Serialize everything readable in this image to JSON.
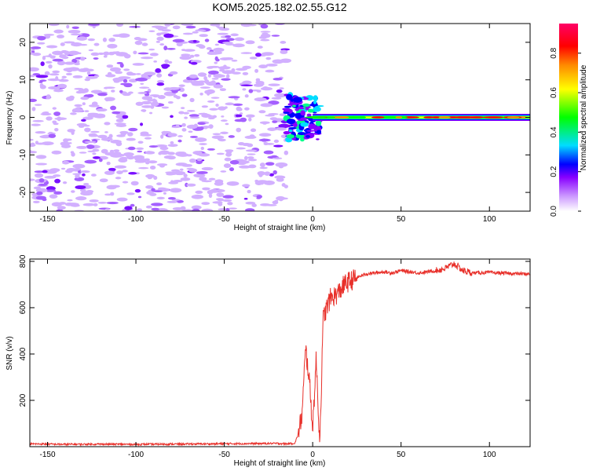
{
  "title": "KOM5.2025.182.02.55.G12",
  "chart_data": [
    {
      "type": "heatmap",
      "xlabel": "Height of straight line (km)",
      "ylabel": "Frequency (Hz)",
      "xlim": [
        -160,
        123
      ],
      "ylim": [
        -25,
        25
      ],
      "xticks": [
        -150,
        -100,
        -50,
        0,
        50,
        100
      ],
      "yticks": [
        -20,
        -10,
        0,
        10,
        20
      ],
      "grid": false,
      "colorbar": {
        "label": "Normalized spectral amplitude",
        "range": [
          0,
          0.95
        ],
        "ticks": [
          0.0,
          0.2,
          0.4,
          0.6,
          0.8
        ],
        "colors": [
          "#ffffff",
          "#cc99ff",
          "#8800ff",
          "#0000ff",
          "#00ddff",
          "#00ff00",
          "#ffff00",
          "#ff8800",
          "#ff0000",
          "#ff0066"
        ]
      },
      "features": {
        "noise_region_x": [
          -160,
          -15
        ],
        "transition_x": [
          -15,
          0
        ],
        "carrier_region_x": [
          0,
          123
        ],
        "carrier_frequency_hz": 0
      }
    },
    {
      "type": "line",
      "xlabel": "Height of straight line (km)",
      "ylabel": "SNR (v/v)",
      "xlim": [
        -160,
        123
      ],
      "ylim": [
        0,
        810
      ],
      "xticks": [
        -150,
        -100,
        -50,
        0,
        50,
        100
      ],
      "yticks": [
        200,
        400,
        600,
        800
      ],
      "grid": false,
      "line_color": "#e8302a",
      "x": [
        -160,
        -140,
        -120,
        -100,
        -80,
        -60,
        -40,
        -20,
        -15,
        -10,
        -8,
        -6,
        -4,
        -2,
        0,
        2,
        4,
        6,
        8,
        10,
        12,
        14,
        16,
        18,
        20,
        25,
        30,
        35,
        40,
        45,
        50,
        60,
        70,
        75,
        80,
        85,
        90,
        100,
        110,
        123
      ],
      "y": [
        12,
        10,
        11,
        10,
        11,
        12,
        13,
        14,
        12,
        15,
        60,
        140,
        420,
        300,
        80,
        380,
        10,
        560,
        600,
        640,
        650,
        660,
        680,
        700,
        710,
        730,
        745,
        750,
        755,
        750,
        760,
        750,
        760,
        770,
        790,
        760,
        750,
        752,
        748,
        745
      ]
    }
  ]
}
